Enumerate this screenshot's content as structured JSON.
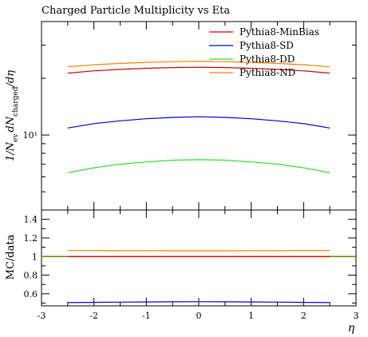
{
  "chart_data": [
    {
      "type": "line",
      "title": "Charged Particle Multiplicity vs Eta",
      "ylabel": "1/N_ev dN_charged/dη",
      "yscale": "log",
      "ylim": [
        4,
        40
      ],
      "xlim": [
        -3,
        3
      ],
      "legend_position": "top-right",
      "y_tick_labels": [
        {
          "value": 10,
          "label": "10¹"
        }
      ],
      "x": [
        -2.5,
        -2.0,
        -1.5,
        -1.0,
        -0.5,
        0.0,
        0.5,
        1.0,
        1.5,
        2.0,
        2.5
      ],
      "series": [
        {
          "name": "Pythia8-MinBias",
          "color": "#d40000",
          "values": [
            21.3,
            21.9,
            22.3,
            22.6,
            22.8,
            22.9,
            22.8,
            22.6,
            22.3,
            21.9,
            21.3
          ]
        },
        {
          "name": "Pythia8-SD",
          "color": "#0000d4",
          "values": [
            10.9,
            11.5,
            11.9,
            12.2,
            12.4,
            12.5,
            12.4,
            12.2,
            11.9,
            11.5,
            10.9
          ]
        },
        {
          "name": "Pythia8-DD",
          "color": "#33dd33",
          "values": [
            6.3,
            6.7,
            7.0,
            7.2,
            7.35,
            7.4,
            7.35,
            7.2,
            7.0,
            6.7,
            6.3
          ]
        },
        {
          "name": "Pythia8-ND",
          "color": "#ff8000",
          "values": [
            23.0,
            23.6,
            24.0,
            24.3,
            24.5,
            24.6,
            24.5,
            24.3,
            24.0,
            23.6,
            23.0
          ]
        }
      ]
    },
    {
      "type": "line",
      "ylabel": "MC/data",
      "xlabel": "η",
      "ylim": [
        0.47,
        1.5
      ],
      "xlim": [
        -3,
        3
      ],
      "y_ticks": [
        0.6,
        0.8,
        1.0,
        1.2,
        1.4
      ],
      "y_tick_labels": [
        "0.6",
        "0.8",
        "1",
        "1.2",
        "1.4"
      ],
      "x_ticks": [
        -3,
        -2,
        -1,
        0,
        1,
        2,
        3
      ],
      "x_tick_labels": [
        "-3",
        "-2",
        "-1",
        "0",
        "1",
        "2",
        "3"
      ],
      "reference_line": {
        "y": 1.0,
        "color": "#7a7a00"
      },
      "x": [
        -2.5,
        -2.0,
        -1.5,
        -1.0,
        -0.5,
        0.0,
        0.5,
        1.0,
        1.5,
        2.0,
        2.5
      ],
      "series": [
        {
          "name": "Pythia8-MinBias",
          "color": "#d40000",
          "values": [
            1.0,
            1.0,
            1.0,
            1.0,
            1.0,
            1.0,
            1.0,
            1.0,
            1.0,
            1.0,
            1.0
          ]
        },
        {
          "name": "Pythia8-ND",
          "color": "#ff8000",
          "values": [
            1.065,
            1.065,
            1.063,
            1.063,
            1.062,
            1.062,
            1.062,
            1.063,
            1.063,
            1.065,
            1.066
          ]
        },
        {
          "name": "Pythia8-SD",
          "color": "#0000d4",
          "values": [
            0.505,
            0.508,
            0.51,
            0.512,
            0.514,
            0.515,
            0.514,
            0.512,
            0.51,
            0.508,
            0.505
          ]
        }
      ]
    }
  ]
}
